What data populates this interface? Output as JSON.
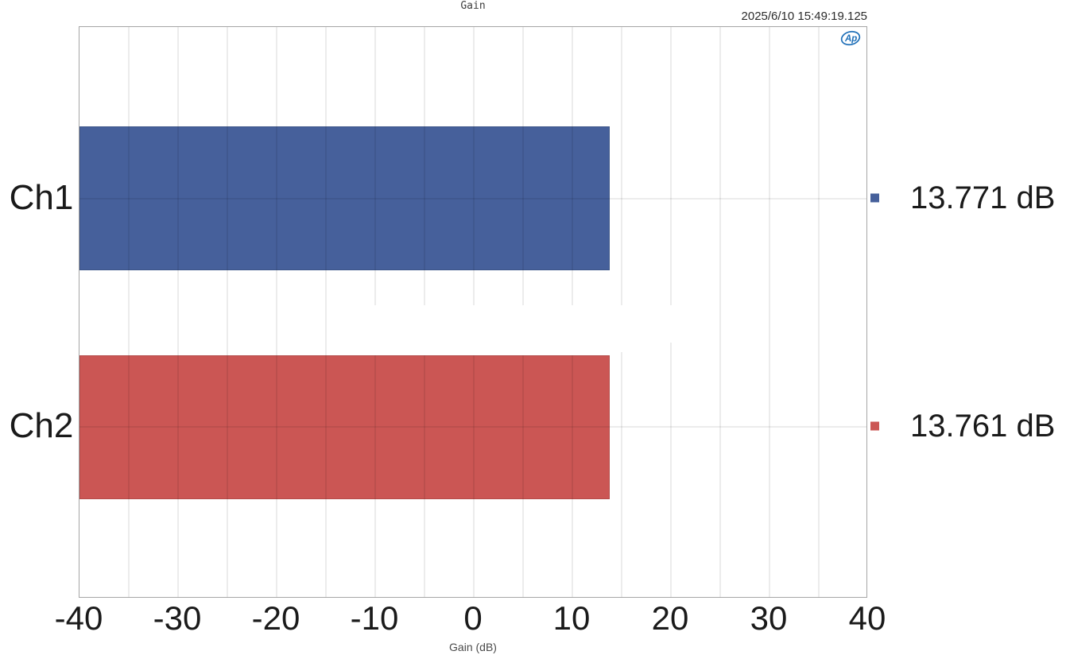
{
  "page": {
    "background": "#FFFFFF"
  },
  "header": {
    "title": "Gain",
    "timestamp": "2025/6/10 15:49:19.125"
  },
  "logo": {
    "label": "Ap",
    "color": "#1E6FB8"
  },
  "chart_data": {
    "type": "bar",
    "orientation": "horizontal",
    "title": "Gain",
    "xlabel": "Gain (dB)",
    "xlim": [
      -40,
      40
    ],
    "xticks": [
      -40,
      -30,
      -20,
      -10,
      0,
      10,
      20,
      30,
      40
    ],
    "minor_grid_step": 5,
    "grid": true,
    "legend_position": "right",
    "categories": [
      "Ch1",
      "Ch2"
    ],
    "bars": [
      {
        "category": "Ch1",
        "value": 13.771,
        "label": "13.771 dB",
        "color": "#46609B",
        "border_color": "#3D5588"
      },
      {
        "category": "Ch2",
        "value": 13.761,
        "label": "13.761 dB",
        "color": "#CB5654",
        "border_color": "#B44B49"
      }
    ]
  },
  "colors": {
    "grid": "#E8E8E8",
    "plot_border": "#A6A6A6",
    "text": "#1A1A1A",
    "muted_text": "#4A4A4A"
  }
}
